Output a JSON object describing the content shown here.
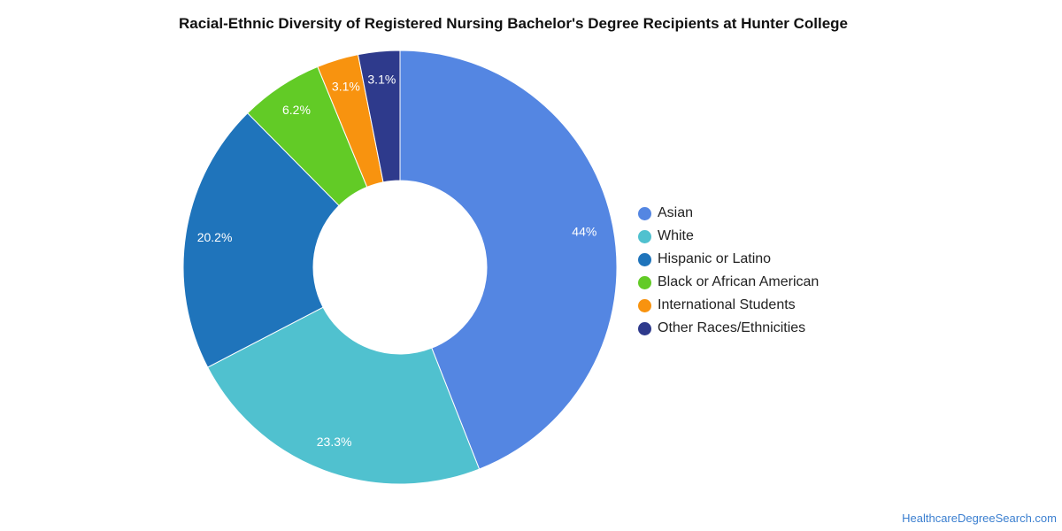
{
  "title": "Racial-Ethnic Diversity of Registered Nursing Bachelor's Degree Recipients at Hunter College",
  "source": "HealthcareDegreeSearch.com",
  "chart_data": {
    "type": "pie",
    "style": "donut",
    "legend_position": "right",
    "slices": [
      {
        "name": "Asian",
        "value": 44,
        "label": "44%",
        "color": "#5486e2"
      },
      {
        "name": "White",
        "value": 23.3,
        "label": "23.3%",
        "color": "#50c1cf"
      },
      {
        "name": "Hispanic or Latino",
        "value": 20.2,
        "label": "20.2%",
        "color": "#1f74bb"
      },
      {
        "name": "Black or African American",
        "value": 6.2,
        "label": "6.2%",
        "color": "#62cb26"
      },
      {
        "name": "International Students",
        "value": 3.1,
        "label": "3.1%",
        "color": "#f8930f"
      },
      {
        "name": "Other Races/Ethnicities",
        "value": 3.1,
        "label": "3.1%",
        "color": "#2e3a8c"
      }
    ]
  }
}
